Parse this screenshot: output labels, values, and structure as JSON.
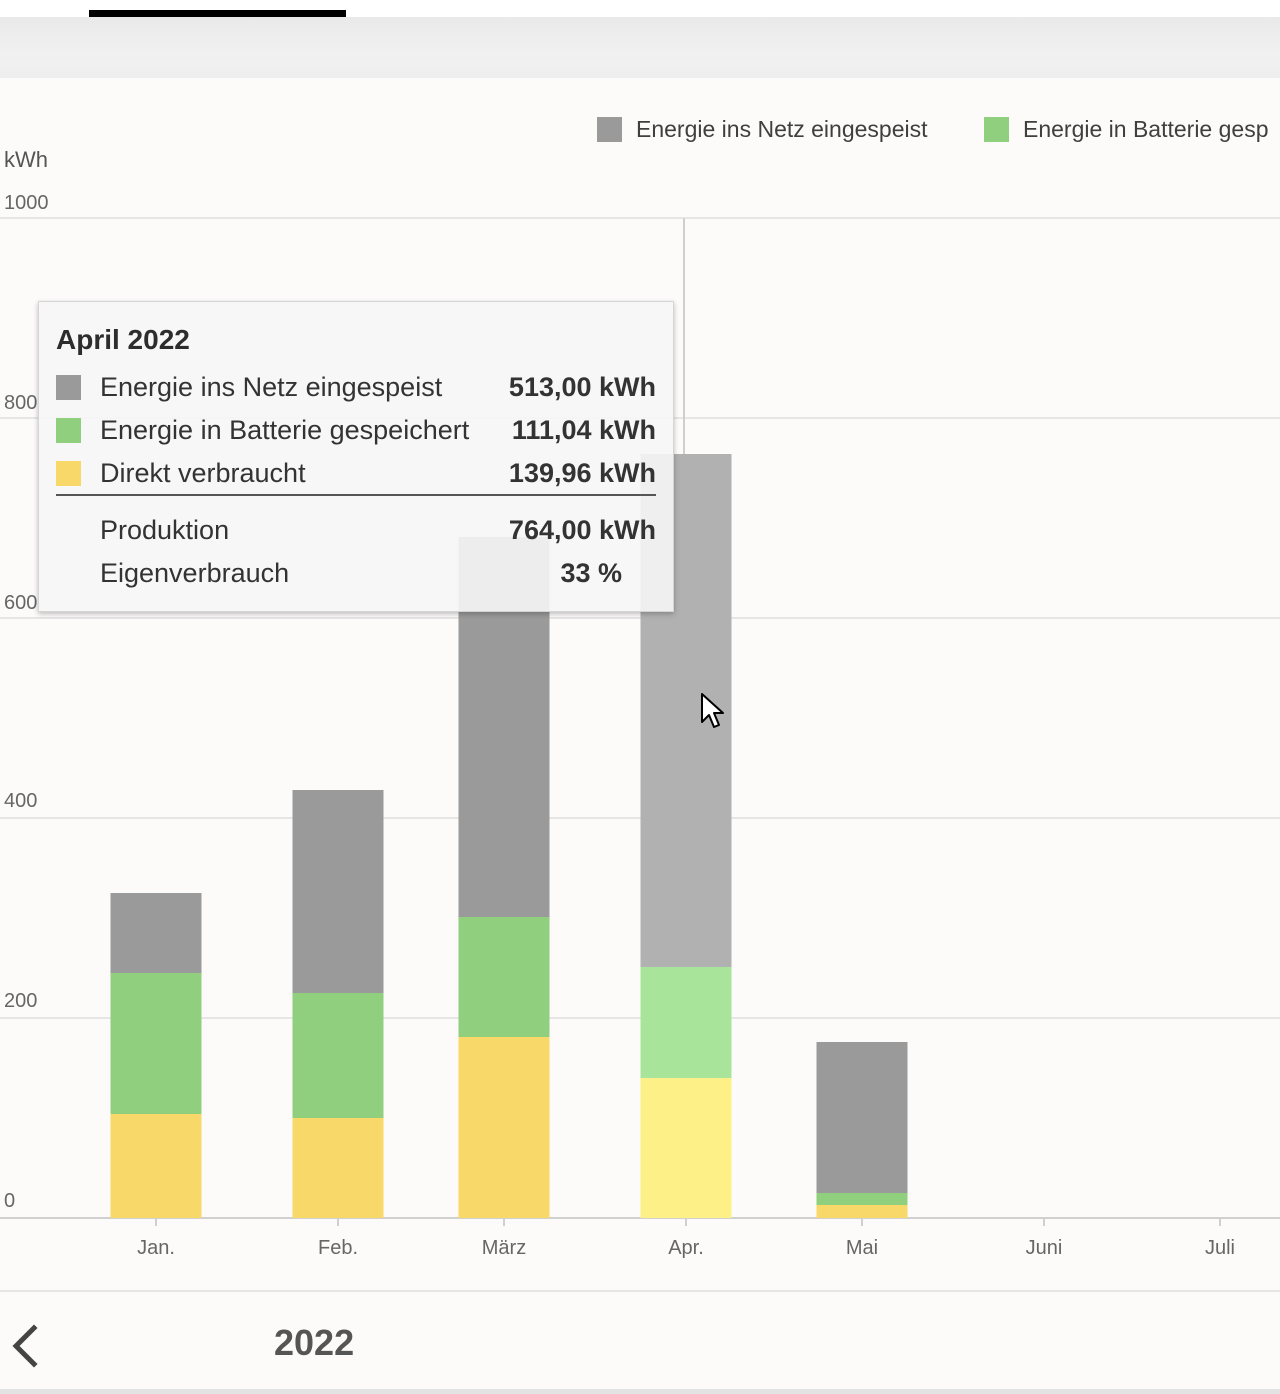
{
  "header": {
    "active_tab": ""
  },
  "chart_data": {
    "type": "bar",
    "stacked": true,
    "unit": "kWh",
    "ylim": [
      0,
      1000
    ],
    "yticks": [
      "0",
      "200",
      "400",
      "600",
      "800",
      "1000"
    ],
    "categories": [
      "Jan.",
      "Feb.",
      "März",
      "Apr.",
      "Mai",
      "Juni",
      "Juli"
    ],
    "series": [
      {
        "name": "Direkt verbraucht",
        "color": "#f8d868",
        "highlight_color": "#fdf087",
        "values": [
          104,
          100,
          181,
          139.96,
          13,
          0,
          0
        ]
      },
      {
        "name": "Energie in Batterie gespeichert",
        "color": "#8fcf7e",
        "highlight_color": "#a8e59a",
        "values": [
          141,
          125,
          120,
          111.04,
          12,
          0,
          0
        ]
      },
      {
        "name": "Energie ins Netz eingespeist",
        "color": "#9a9a9a",
        "highlight_color": "#b1b1b1",
        "values": [
          80,
          203,
          380,
          513,
          151,
          0,
          0
        ]
      }
    ],
    "legend": {
      "position": "top-right",
      "items": [
        {
          "label": "Energie ins Netz eingespeist",
          "color": "#9a9a9a"
        },
        {
          "label": "Energie in Batterie gesp",
          "color": "#8fcf7e"
        }
      ]
    },
    "highlighted_category": "Apr.",
    "grid": true
  },
  "tooltip": {
    "title": "April 2022",
    "rows": [
      {
        "label": "Energie ins Netz eingespeist",
        "value": "513,00 kWh",
        "color": "#9a9a9a"
      },
      {
        "label": "Energie in Batterie gespeichert",
        "value": "111,04 kWh",
        "color": "#8fcf7e"
      },
      {
        "label": "Direkt verbraucht",
        "value": "139,96 kWh",
        "color": "#f8d868"
      }
    ],
    "totals": [
      {
        "label": "Produktion",
        "value": "764,00 kWh"
      },
      {
        "label": "Eigenverbrauch",
        "value": "33 %"
      }
    ]
  },
  "navigation": {
    "prev_icon": "chevron-left-icon",
    "year": "2022"
  }
}
